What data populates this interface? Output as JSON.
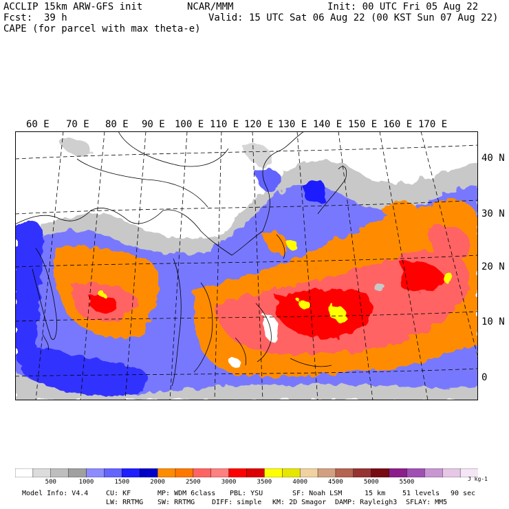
{
  "header": {
    "model": "ACCLIP 15km ARW-GFS init",
    "org": "NCAR/MMM",
    "init": "Init: 00 UTC Fri 05 Aug 22",
    "fcst_label": "Fcst:",
    "fcst_value": "39 h",
    "valid": "Valid: 15 UTC Sat 06 Aug 22 (00 KST Sun 07 Aug 22)",
    "field": "CAPE (for parcel with max theta-e)"
  },
  "map": {
    "lon_labels": [
      "60 E",
      "70 E",
      "80 E",
      "90 E",
      "100 E",
      "110 E",
      "120 E",
      "130 E",
      "140 E",
      "150 E",
      "160 E",
      "170 E"
    ],
    "lat_labels": [
      "40 N",
      "30 N",
      "20 N",
      "10 N",
      "0"
    ]
  },
  "colorbar": {
    "colors": [
      "#ffffff",
      "#dcdcdc",
      "#bebebe",
      "#a0a0a0",
      "#8c8cff",
      "#6464ff",
      "#1e1eff",
      "#0000c8",
      "#ff8c00",
      "#ff7800",
      "#ff6464",
      "#ff8080",
      "#ff0000",
      "#dc0000",
      "#ffff00",
      "#e6e600",
      "#f0d2a0",
      "#d2a080",
      "#b46450",
      "#963232",
      "#780a14",
      "#8c1e8c",
      "#a050b4",
      "#c896d2",
      "#e6c8e6",
      "#f5e6f5"
    ],
    "labels": [
      "500",
      "1000",
      "1500",
      "2000",
      "2500",
      "3000",
      "3500",
      "4000",
      "4500",
      "5000",
      "5500"
    ],
    "unit": "J kg-1"
  },
  "footer": {
    "line1": [
      "Model Info: V4.4",
      "CU: KF",
      "MP: WDM 6class",
      "PBL: YSU",
      "SF: Noah LSM",
      "15 km",
      "51 levels",
      "90 sec"
    ],
    "line2": [
      "LW: RRTMG",
      "SW: RRTMG",
      "DIFF: simple",
      "KM: 2D Smagor",
      "DAMP: Rayleigh3",
      "SFLAY: MM5"
    ]
  }
}
